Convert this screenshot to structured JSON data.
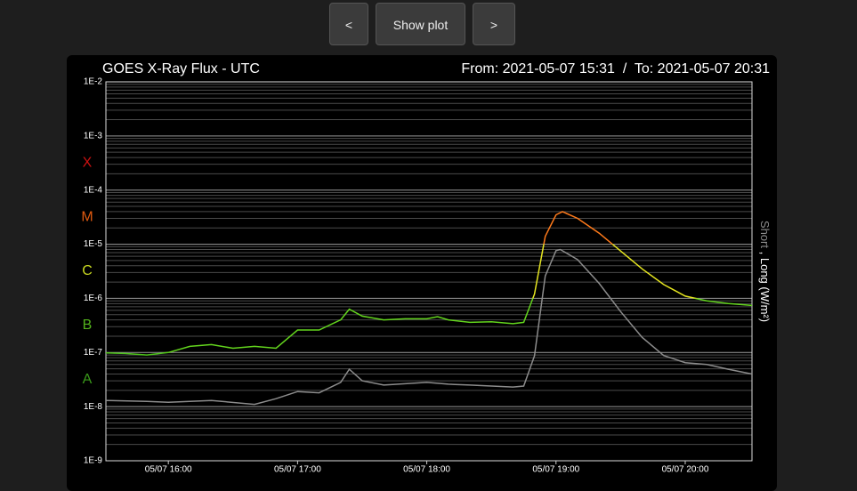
{
  "buttons": [
    "<",
    "Show plot",
    ">"
  ],
  "chart_data": {
    "type": "line",
    "title": "GOES X-Ray Flux - UTC",
    "subtitle": "From: 2021-05-07 15:31  /  To: 2021-05-07 20:31",
    "y2_label_separator": ",",
    "log_scale": true,
    "grid": true,
    "xlim": [
      "05/07 15:31",
      "05/07 20:31"
    ],
    "xticks": [
      "05/07 16:00",
      "05/07 17:00",
      "05/07 18:00",
      "05/07 19:00",
      "05/07 20:00"
    ],
    "ylim": [
      1e-09,
      0.01
    ],
    "yticks": [
      {
        "value": 1e-09,
        "label": "1E-9"
      },
      {
        "value": 1e-08,
        "label": "1E-8"
      },
      {
        "value": 1e-07,
        "label": "1E-7"
      },
      {
        "value": 1e-06,
        "label": "1E-6"
      },
      {
        "value": 1e-05,
        "label": "1E-5"
      },
      {
        "value": 0.0001,
        "label": "1E-4"
      },
      {
        "value": 0.001,
        "label": "1E-3"
      },
      {
        "value": 0.01,
        "label": "1E-2"
      }
    ],
    "yminorticks": [
      2e-09,
      3e-09,
      4e-09,
      5e-09,
      6e-09,
      7e-09,
      8e-09,
      9e-09,
      2e-08,
      3e-08,
      4e-08,
      5e-08,
      6e-08,
      7e-08,
      8e-08,
      9e-08,
      2e-07,
      3e-07,
      4e-07,
      5e-07,
      6e-07,
      7e-07,
      8e-07,
      9e-07,
      2e-06,
      3e-06,
      4e-06,
      5e-06,
      6e-06,
      7e-06,
      8e-06,
      9e-06,
      2e-05,
      3e-05,
      4e-05,
      5e-05,
      6e-05,
      7e-05,
      8e-05,
      9e-05,
      0.0002,
      0.0003,
      0.0004,
      0.0005,
      0.0006,
      0.0007,
      0.0008,
      0.0009,
      0.002,
      0.003,
      0.004,
      0.005,
      0.006,
      0.007,
      0.008,
      0.009
    ],
    "classes": [
      {
        "label": "A",
        "value": 1e-08,
        "color": "#3a9a1a",
        "line_color": "#4cc21a"
      },
      {
        "label": "B",
        "value": 1e-07,
        "color": "#53b21c",
        "line_color": "#63d51d"
      },
      {
        "label": "C",
        "value": 1e-06,
        "color": "#c8d820",
        "line_color": "#e6e620"
      },
      {
        "label": "M",
        "value": 1e-05,
        "color": "#e05a10",
        "line_color": "#ff7a1a"
      },
      {
        "label": "X",
        "value": 0.0001,
        "color": "#cc1111",
        "line_color": "#e02020"
      }
    ],
    "series": [
      {
        "name": "Short",
        "color": "#8c8c8c",
        "x": [
          "05/07 15:31",
          "05/07 15:50",
          "05/07 16:00",
          "05/07 16:20",
          "05/07 16:40",
          "05/07 16:50",
          "05/07 17:00",
          "05/07 17:10",
          "05/07 17:20",
          "05/07 17:24",
          "05/07 17:30",
          "05/07 17:40",
          "05/07 18:00",
          "05/07 18:10",
          "05/07 18:20",
          "05/07 18:40",
          "05/07 18:45",
          "05/07 18:50",
          "05/07 18:55",
          "05/07 19:00",
          "05/07 19:02",
          "05/07 19:10",
          "05/07 19:20",
          "05/07 19:30",
          "05/07 19:40",
          "05/07 19:50",
          "05/07 20:00",
          "05/07 20:10",
          "05/07 20:20",
          "05/07 20:31"
        ],
        "values": [
          1.3e-08,
          1.25e-08,
          1.2e-08,
          1.3e-08,
          1.1e-08,
          1.4e-08,
          1.9e-08,
          1.8e-08,
          2.8e-08,
          4.9e-08,
          3e-08,
          2.5e-08,
          2.8e-08,
          2.6e-08,
          2.5e-08,
          2.3e-08,
          2.4e-08,
          8.7e-08,
          2.6e-06,
          7.6e-06,
          8e-06,
          5.2e-06,
          1.9e-06,
          5.7e-07,
          1.9e-07,
          8.8e-08,
          6.5e-08,
          6e-08,
          4.9e-08,
          4e-08
        ]
      },
      {
        "name": "Long (W/m²)",
        "color": "#63d51d",
        "x": [
          "05/07 15:31",
          "05/07 15:40",
          "05/07 15:50",
          "05/07 16:00",
          "05/07 16:10",
          "05/07 16:20",
          "05/07 16:30",
          "05/07 16:40",
          "05/07 16:50",
          "05/07 17:00",
          "05/07 17:10",
          "05/07 17:20",
          "05/07 17:24",
          "05/07 17:30",
          "05/07 17:40",
          "05/07 17:50",
          "05/07 18:00",
          "05/07 18:05",
          "05/07 18:10",
          "05/07 18:20",
          "05/07 18:30",
          "05/07 18:40",
          "05/07 18:45",
          "05/07 18:50",
          "05/07 18:55",
          "05/07 19:00",
          "05/07 19:03",
          "05/07 19:10",
          "05/07 19:20",
          "05/07 19:30",
          "05/07 19:40",
          "05/07 19:50",
          "05/07 20:00",
          "05/07 20:10",
          "05/07 20:20",
          "05/07 20:31"
        ],
        "values": [
          9.8e-08,
          9.6e-08,
          9e-08,
          1e-07,
          1.3e-07,
          1.4e-07,
          1.2e-07,
          1.3e-07,
          1.2e-07,
          2.6e-07,
          2.6e-07,
          4e-07,
          6.3e-07,
          4.7e-07,
          4e-07,
          4.2e-07,
          4.2e-07,
          4.6e-07,
          4e-07,
          3.6e-07,
          3.7e-07,
          3.4e-07,
          3.6e-07,
          1.2e-06,
          1.4e-05,
          3.5e-05,
          4e-05,
          3e-05,
          1.6e-05,
          7.5e-06,
          3.5e-06,
          1.8e-06,
          1.1e-06,
          9e-07,
          8e-07,
          7.4e-07
        ]
      }
    ]
  }
}
